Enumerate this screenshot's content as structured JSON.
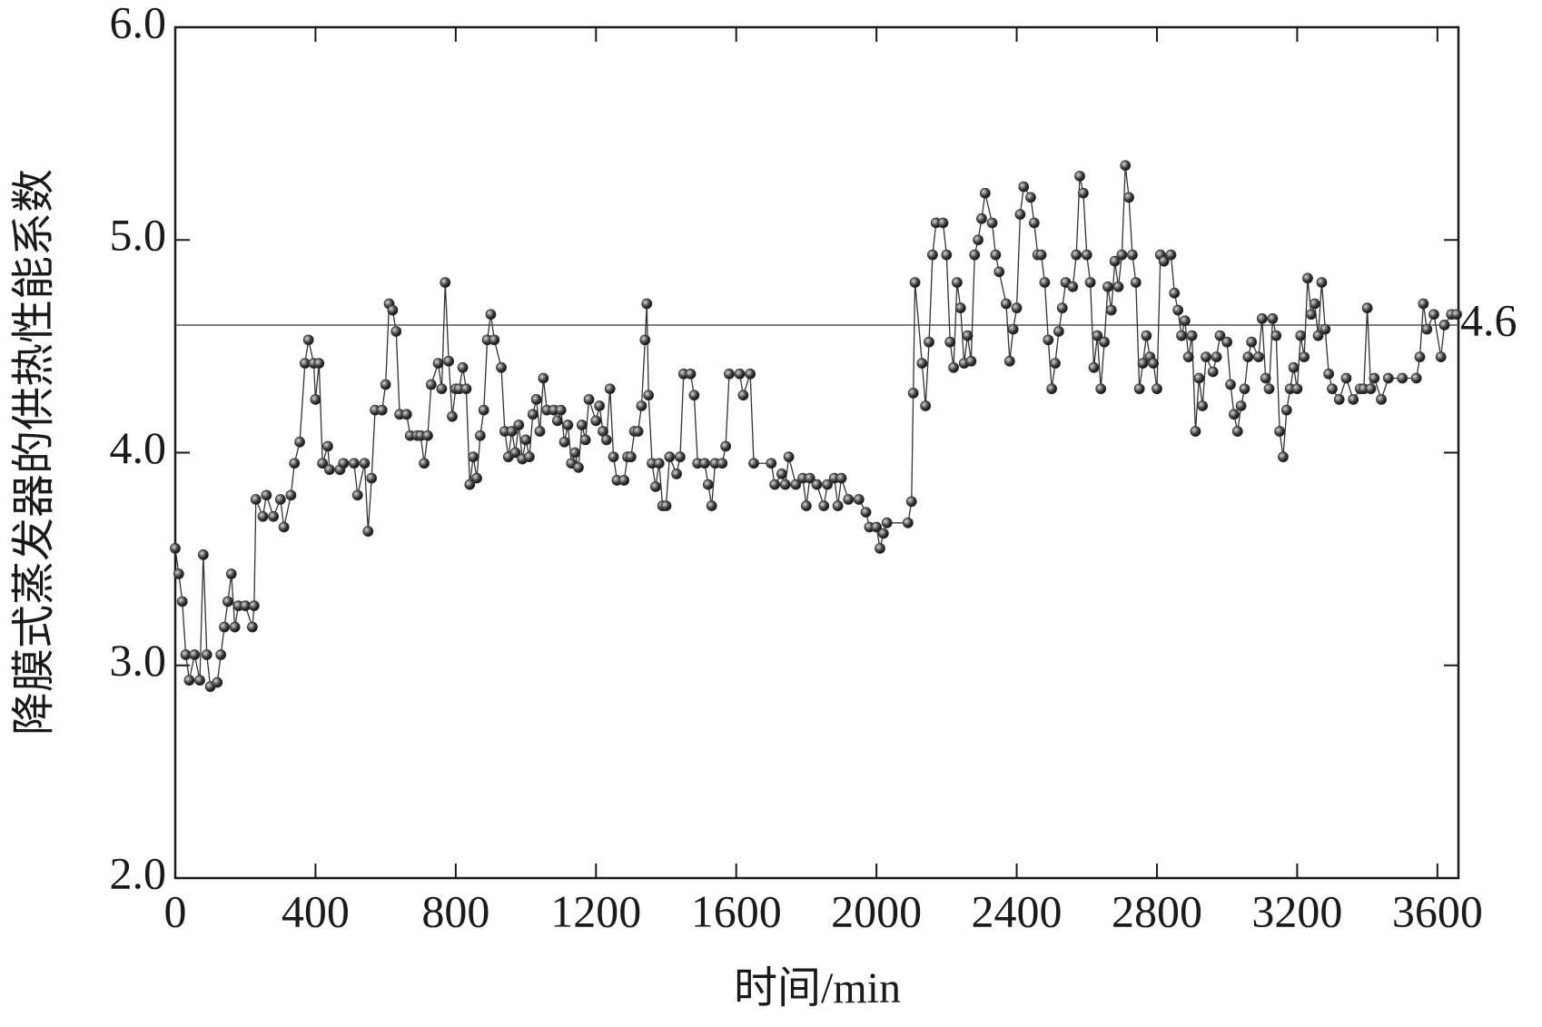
{
  "chart_data": {
    "type": "line",
    "x_label": "时间/min",
    "y_label": "降膜式蒸发器的供热性能系数",
    "xlim": [
      0,
      3660
    ],
    "ylim": [
      2.0,
      6.0
    ],
    "xticks": [
      0,
      400,
      800,
      1200,
      1600,
      2000,
      2400,
      2800,
      3200,
      3600
    ],
    "yticks": [
      {
        "value": 2.0,
        "label": "2.0"
      },
      {
        "value": 3.0,
        "label": "3.0"
      },
      {
        "value": 4.0,
        "label": "4.0"
      },
      {
        "value": 5.0,
        "label": "5.0"
      },
      {
        "value": 6.0,
        "label": "6.0"
      }
    ],
    "reference_line": 4.6,
    "x": [
      0,
      10,
      20,
      30,
      40,
      55,
      70,
      80,
      90,
      100,
      120,
      130,
      140,
      150,
      160,
      170,
      180,
      200,
      220,
      225,
      230,
      250,
      260,
      280,
      300,
      310,
      330,
      340,
      355,
      370,
      380,
      395,
      400,
      410,
      420,
      435,
      440,
      470,
      480,
      510,
      520,
      540,
      550,
      560,
      570,
      590,
      600,
      610,
      620,
      630,
      640,
      660,
      670,
      690,
      700,
      710,
      720,
      730,
      750,
      760,
      770,
      780,
      790,
      800,
      810,
      820,
      830,
      840,
      850,
      860,
      870,
      880,
      890,
      900,
      910,
      930,
      940,
      950,
      960,
      970,
      980,
      990,
      1000,
      1010,
      1020,
      1030,
      1040,
      1050,
      1060,
      1080,
      1090,
      1100,
      1110,
      1120,
      1130,
      1140,
      1150,
      1160,
      1170,
      1180,
      1200,
      1210,
      1220,
      1230,
      1240,
      1250,
      1260,
      1280,
      1290,
      1300,
      1310,
      1320,
      1330,
      1340,
      1345,
      1350,
      1360,
      1370,
      1380,
      1390,
      1400,
      1410,
      1430,
      1440,
      1450,
      1470,
      1480,
      1490,
      1510,
      1520,
      1530,
      1540,
      1560,
      1570,
      1580,
      1610,
      1620,
      1640,
      1650,
      1700,
      1710,
      1730,
      1740,
      1750,
      1770,
      1790,
      1800,
      1810,
      1830,
      1850,
      1860,
      1880,
      1890,
      1900,
      1920,
      1950,
      1970,
      1980,
      2000,
      2010,
      2020,
      2030,
      2090,
      2100,
      2105,
      2110,
      2130,
      2140,
      2150,
      2160,
      2170,
      2190,
      2200,
      2210,
      2220,
      2230,
      2240,
      2250,
      2260,
      2270,
      2280,
      2290,
      2300,
      2310,
      2330,
      2340,
      2350,
      2370,
      2380,
      2390,
      2400,
      2410,
      2420,
      2440,
      2450,
      2460,
      2470,
      2480,
      2490,
      2500,
      2510,
      2520,
      2530,
      2540,
      2560,
      2570,
      2580,
      2590,
      2600,
      2610,
      2620,
      2630,
      2640,
      2650,
      2660,
      2670,
      2680,
      2690,
      2700,
      2710,
      2720,
      2730,
      2740,
      2750,
      2760,
      2770,
      2780,
      2790,
      2800,
      2810,
      2820,
      2840,
      2850,
      2860,
      2870,
      2880,
      2890,
      2900,
      2910,
      2920,
      2930,
      2940,
      2960,
      2970,
      2980,
      3000,
      3010,
      3020,
      3030,
      3040,
      3050,
      3060,
      3070,
      3090,
      3100,
      3110,
      3120,
      3130,
      3140,
      3150,
      3160,
      3170,
      3180,
      3190,
      3200,
      3210,
      3220,
      3230,
      3240,
      3250,
      3260,
      3270,
      3280,
      3290,
      3300,
      3320,
      3340,
      3360,
      3380,
      3390,
      3400,
      3410,
      3420,
      3440,
      3460,
      3500,
      3540,
      3550,
      3560,
      3570,
      3590,
      3610,
      3620,
      3640,
      3655
    ],
    "series": [
      {
        "color": "#333333",
        "values": [
          3.55,
          3.43,
          3.3,
          3.05,
          2.93,
          3.05,
          2.93,
          3.52,
          3.05,
          2.9,
          2.92,
          3.05,
          3.18,
          3.3,
          3.43,
          3.18,
          3.28,
          3.28,
          3.18,
          3.28,
          3.78,
          3.7,
          3.8,
          3.7,
          3.78,
          3.65,
          3.8,
          3.95,
          4.05,
          4.42,
          4.53,
          4.42,
          4.25,
          4.42,
          3.95,
          4.03,
          3.92,
          3.92,
          3.95,
          3.95,
          3.8,
          3.95,
          3.63,
          3.88,
          4.2,
          4.2,
          4.32,
          4.7,
          4.67,
          4.57,
          4.18,
          4.18,
          4.08,
          4.08,
          4.08,
          3.95,
          4.08,
          4.32,
          4.42,
          4.3,
          4.8,
          4.43,
          4.17,
          4.3,
          4.3,
          4.4,
          4.3,
          3.85,
          3.98,
          3.88,
          4.08,
          4.2,
          4.53,
          4.65,
          4.53,
          4.4,
          4.1,
          3.98,
          4.1,
          4.0,
          4.13,
          3.97,
          4.06,
          3.98,
          4.18,
          4.25,
          4.1,
          4.35,
          4.2,
          4.2,
          4.15,
          4.2,
          4.05,
          4.13,
          3.95,
          4.0,
          3.93,
          4.13,
          4.06,
          4.25,
          4.15,
          4.22,
          4.1,
          4.06,
          4.3,
          3.98,
          3.87,
          3.87,
          3.98,
          3.98,
          4.1,
          4.1,
          4.22,
          4.53,
          4.7,
          4.27,
          3.95,
          3.84,
          3.95,
          3.75,
          3.75,
          3.98,
          3.9,
          3.98,
          4.37,
          4.37,
          4.27,
          3.95,
          3.95,
          3.85,
          3.75,
          3.95,
          3.95,
          4.03,
          4.37,
          4.37,
          4.27,
          4.37,
          3.95,
          3.95,
          3.85,
          3.9,
          3.85,
          3.98,
          3.85,
          3.88,
          3.75,
          3.88,
          3.85,
          3.75,
          3.85,
          3.88,
          3.75,
          3.88,
          3.78,
          3.78,
          3.72,
          3.65,
          3.65,
          3.55,
          3.62,
          3.67,
          3.67,
          3.77,
          4.28,
          4.8,
          4.42,
          4.22,
          4.52,
          4.93,
          5.08,
          5.08,
          4.93,
          4.52,
          4.4,
          4.8,
          4.68,
          4.42,
          4.55,
          4.43,
          4.93,
          5.0,
          5.1,
          5.22,
          5.08,
          4.93,
          4.85,
          4.7,
          4.43,
          4.58,
          4.68,
          5.12,
          5.25,
          5.2,
          5.08,
          4.93,
          4.93,
          4.8,
          4.53,
          4.3,
          4.42,
          4.57,
          4.68,
          4.8,
          4.78,
          4.93,
          5.3,
          5.22,
          4.93,
          4.8,
          4.4,
          4.55,
          4.3,
          4.52,
          4.78,
          4.67,
          4.9,
          4.78,
          4.93,
          5.35,
          5.2,
          4.93,
          4.8,
          4.3,
          4.42,
          4.55,
          4.45,
          4.42,
          4.3,
          4.93,
          4.9,
          4.93,
          4.75,
          4.67,
          4.55,
          4.62,
          4.45,
          4.55,
          4.1,
          4.35,
          4.22,
          4.45,
          4.38,
          4.45,
          4.55,
          4.52,
          4.32,
          4.18,
          4.1,
          4.22,
          4.3,
          4.45,
          4.52,
          4.45,
          4.63,
          4.35,
          4.3,
          4.63,
          4.55,
          4.1,
          3.98,
          4.2,
          4.3,
          4.4,
          4.3,
          4.55,
          4.45,
          4.82,
          4.65,
          4.7,
          4.55,
          4.8,
          4.58,
          4.37,
          4.3,
          4.25,
          4.35,
          4.25,
          4.3,
          4.3,
          4.68,
          4.3,
          4.35,
          4.25,
          4.35,
          4.35,
          4.35,
          4.45,
          4.7,
          4.58,
          4.65,
          4.45,
          4.6,
          4.65,
          4.65
        ]
      }
    ]
  }
}
